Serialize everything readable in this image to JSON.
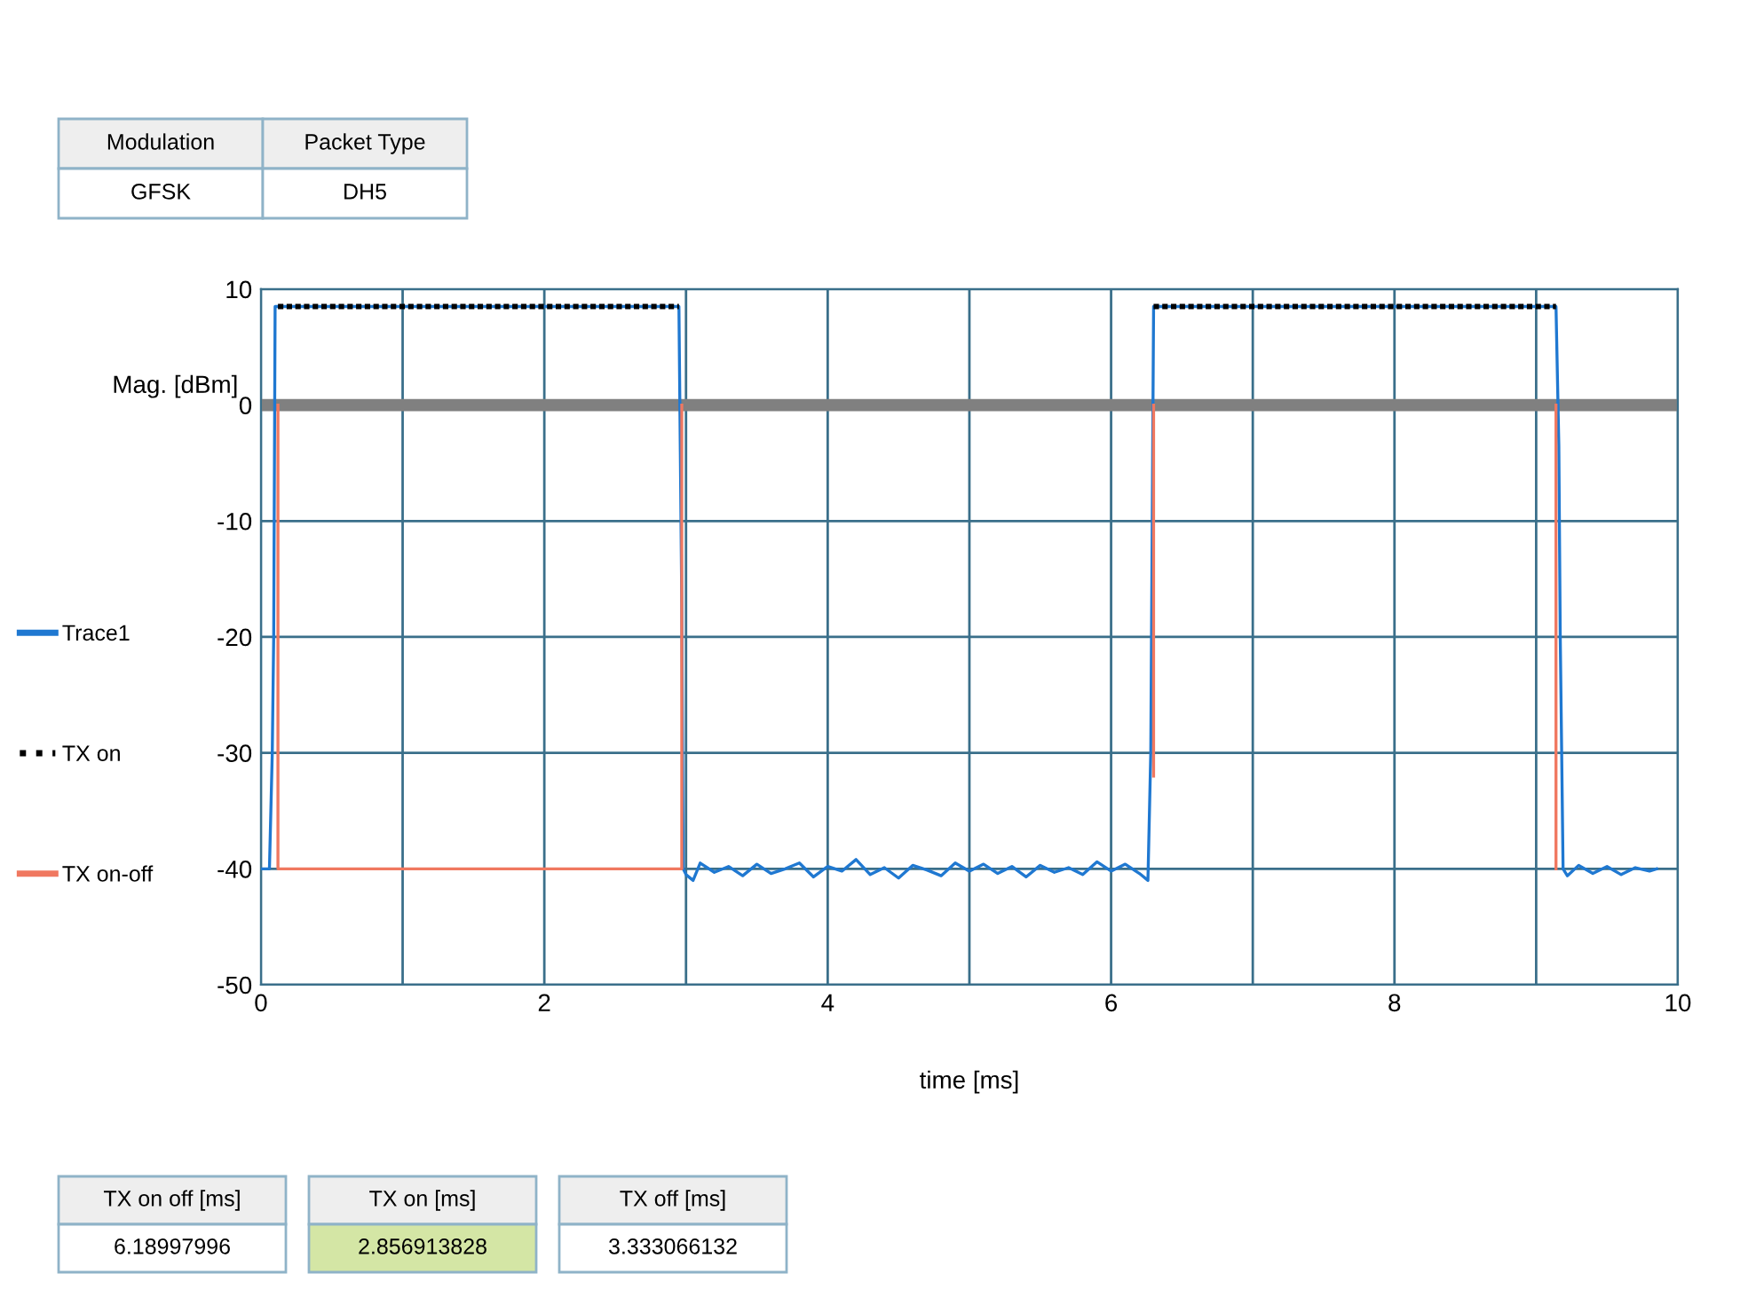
{
  "chart_data": {
    "type": "line",
    "xlabel": "time [ms]",
    "ylabel": "Mag. [dBm]",
    "xlim": [
      0,
      10
    ],
    "ylim": [
      -50,
      10
    ],
    "xticks": [
      0,
      {
        "value": 1,
        "label": null
      },
      2,
      {
        "value": 3,
        "label": null
      },
      4,
      {
        "value": 5,
        "label": null
      },
      6,
      {
        "value": 7,
        "label": null
      },
      8,
      {
        "value": 9,
        "label": null
      },
      10
    ],
    "yticks": [
      -50,
      -40,
      -30,
      -20,
      -10,
      0,
      10
    ],
    "grid": true,
    "legend": "left",
    "ref_lines": [
      {
        "axis": "y",
        "value": 0,
        "color": "#808080"
      }
    ],
    "series": [
      {
        "name": "Trace1",
        "color": "#1f78d1",
        "line_style": "solid",
        "x": [
          0,
          0.06,
          0.08,
          0.09,
          0.1,
          0.12,
          2.95,
          2.97,
          2.98,
          3.0,
          3.05,
          3.1,
          3.2,
          3.3,
          3.4,
          3.5,
          3.6,
          3.7,
          3.8,
          3.9,
          4.0,
          4.1,
          4.2,
          4.3,
          4.4,
          4.5,
          4.6,
          4.7,
          4.8,
          4.9,
          5.0,
          5.1,
          5.2,
          5.3,
          5.4,
          5.5,
          5.6,
          5.7,
          5.8,
          5.9,
          6.0,
          6.1,
          6.2,
          6.26,
          6.28,
          6.3,
          6.32,
          9.14,
          9.16,
          9.17,
          9.19,
          9.22,
          9.3,
          9.4,
          9.5,
          9.6,
          9.7,
          9.8,
          9.85
        ],
        "values": [
          -40,
          -40,
          -30,
          -20,
          8.5,
          8.5,
          8.5,
          -17,
          -40,
          -40.5,
          -41,
          -39.5,
          -40.3,
          -39.8,
          -40.6,
          -39.6,
          -40.4,
          -40,
          -39.5,
          -40.7,
          -39.8,
          -40.2,
          -39.2,
          -40.5,
          -39.9,
          -40.8,
          -39.7,
          -40.1,
          -40.6,
          -39.5,
          -40.2,
          -39.6,
          -40.4,
          -39.8,
          -40.7,
          -39.7,
          -40.3,
          -39.9,
          -40.5,
          -39.4,
          -40.2,
          -39.6,
          -40.4,
          -41,
          -30,
          8.5,
          8.5,
          8.5,
          -3.5,
          -20,
          -40,
          -40.6,
          -39.7,
          -40.4,
          -39.8,
          -40.5,
          -39.9,
          -40.2,
          -40
        ]
      },
      {
        "name": "TX on",
        "color": "#000000",
        "line_style": "dotted",
        "x": [
          0.12,
          2.95,
          2.96,
          6.3,
          9.14
        ],
        "values": [
          8.5,
          8.5,
          null,
          8.5,
          8.5
        ]
      },
      {
        "name": "TX on-off",
        "color": "#f07860",
        "line_style": "solid",
        "x": [
          0.12,
          0.12,
          2.97,
          2.97,
          2.98,
          6.3,
          6.3,
          6.31,
          9.14,
          9.14
        ],
        "values": [
          0,
          -40,
          -40,
          0,
          null,
          0,
          -32,
          null,
          -40,
          0
        ]
      }
    ],
    "annotations": [
      "Modulation",
      "Packet Type",
      "GFSK",
      "DH5",
      "TX on off [ms]",
      "6.18997996",
      "TX on [ms]",
      "2.856913828",
      "TX off [ms]",
      "3.333066132"
    ]
  }
}
